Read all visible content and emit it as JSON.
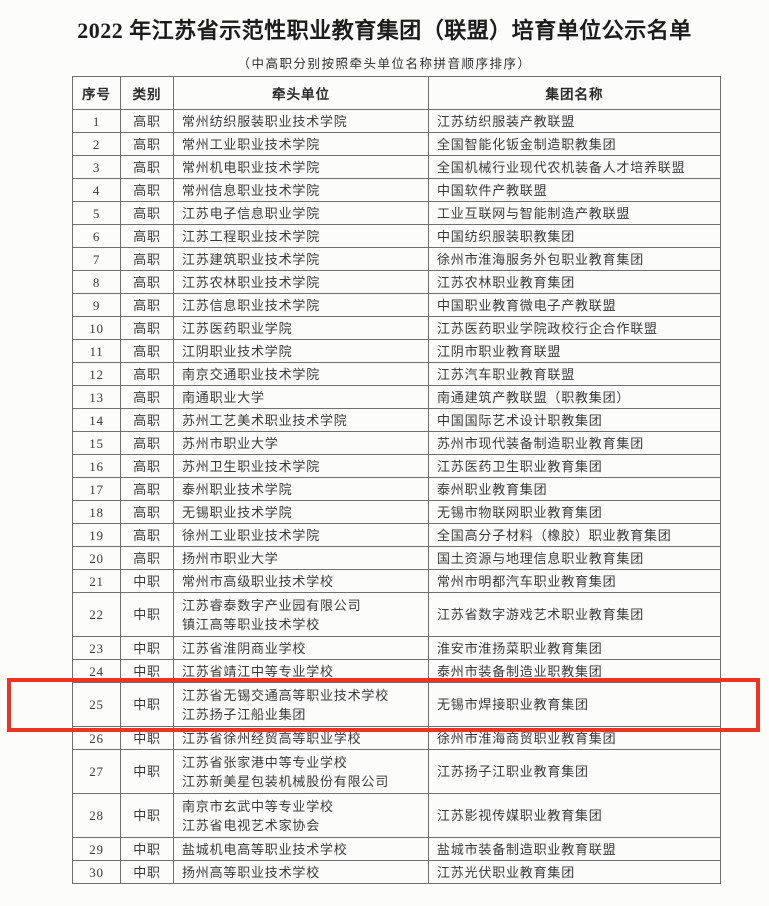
{
  "document": {
    "title": "2022 年江苏省示范性职业教育集团（联盟）培育单位公示名单",
    "subtitle": "（中高职分别按照牵头单位名称拼音顺序排序）"
  },
  "table": {
    "headers": [
      "序号",
      "类别",
      "牵头单位",
      "集团名称"
    ],
    "highlighted_row_no": "25",
    "highlight_color": "#ee3224",
    "rows": [
      {
        "no": "1",
        "category": "高职",
        "lead_unit": [
          "常州纺织服装职业技术学院"
        ],
        "group_name": "江苏纺织服装产教联盟"
      },
      {
        "no": "2",
        "category": "高职",
        "lead_unit": [
          "常州工业职业技术学院"
        ],
        "group_name": "全国智能化钣金制造职教集团"
      },
      {
        "no": "3",
        "category": "高职",
        "lead_unit": [
          "常州机电职业技术学院"
        ],
        "group_name": "全国机械行业现代农机装备人才培养联盟"
      },
      {
        "no": "4",
        "category": "高职",
        "lead_unit": [
          "常州信息职业技术学院"
        ],
        "group_name": "中国软件产教联盟"
      },
      {
        "no": "5",
        "category": "高职",
        "lead_unit": [
          "江苏电子信息职业学院"
        ],
        "group_name": "工业互联网与智能制造产教联盟"
      },
      {
        "no": "6",
        "category": "高职",
        "lead_unit": [
          "江苏工程职业技术学院"
        ],
        "group_name": "中国纺织服装职教集团"
      },
      {
        "no": "7",
        "category": "高职",
        "lead_unit": [
          "江苏建筑职业技术学院"
        ],
        "group_name": "徐州市淮海服务外包职业教育集团"
      },
      {
        "no": "8",
        "category": "高职",
        "lead_unit": [
          "江苏农林职业技术学院"
        ],
        "group_name": "江苏农林职业教育集团"
      },
      {
        "no": "9",
        "category": "高职",
        "lead_unit": [
          "江苏信息职业技术学院"
        ],
        "group_name": "中国职业教育微电子产教联盟"
      },
      {
        "no": "10",
        "category": "高职",
        "lead_unit": [
          "江苏医药职业学院"
        ],
        "group_name": "江苏医药职业学院政校行企合作联盟"
      },
      {
        "no": "11",
        "category": "高职",
        "lead_unit": [
          "江阴职业技术学院"
        ],
        "group_name": "江阴市职业教育联盟"
      },
      {
        "no": "12",
        "category": "高职",
        "lead_unit": [
          "南京交通职业技术学院"
        ],
        "group_name": "江苏汽车职业教育联盟"
      },
      {
        "no": "13",
        "category": "高职",
        "lead_unit": [
          "南通职业大学"
        ],
        "group_name": "南通建筑产教联盟（职教集团）"
      },
      {
        "no": "14",
        "category": "高职",
        "lead_unit": [
          "苏州工艺美术职业技术学院"
        ],
        "group_name": "中国国际艺术设计职教集团"
      },
      {
        "no": "15",
        "category": "高职",
        "lead_unit": [
          "苏州市职业大学"
        ],
        "group_name": "苏州市现代装备制造职业教育集团"
      },
      {
        "no": "16",
        "category": "高职",
        "lead_unit": [
          "苏州卫生职业技术学院"
        ],
        "group_name": "江苏医药卫生职业教育集团"
      },
      {
        "no": "17",
        "category": "高职",
        "lead_unit": [
          "泰州职业技术学院"
        ],
        "group_name": "泰州职业教育集团"
      },
      {
        "no": "18",
        "category": "高职",
        "lead_unit": [
          "无锡职业技术学院"
        ],
        "group_name": "无锡市物联网职业教育集团"
      },
      {
        "no": "19",
        "category": "高职",
        "lead_unit": [
          "徐州工业职业技术学院"
        ],
        "group_name": "全国高分子材料（橡胶）职业教育集团"
      },
      {
        "no": "20",
        "category": "高职",
        "lead_unit": [
          "扬州市职业大学"
        ],
        "group_name": "国土资源与地理信息职业教育集团"
      },
      {
        "no": "21",
        "category": "中职",
        "lead_unit": [
          "常州市高级职业技术学校"
        ],
        "group_name": "常州市明都汽车职业教育集团"
      },
      {
        "no": "22",
        "category": "中职",
        "lead_unit": [
          "江苏睿泰数字产业园有限公司",
          "镇江高等职业技术学校"
        ],
        "group_name": "江苏省数字游戏艺术职业教育集团"
      },
      {
        "no": "23",
        "category": "中职",
        "lead_unit": [
          "江苏省淮阴商业学校"
        ],
        "group_name": "淮安市淮扬菜职业教育集团"
      },
      {
        "no": "24",
        "category": "中职",
        "lead_unit": [
          "江苏省靖江中等专业学校"
        ],
        "group_name": "泰州市装备制造业职教集团"
      },
      {
        "no": "25",
        "category": "中职",
        "lead_unit": [
          "江苏省无锡交通高等职业技术学校",
          "江苏扬子江船业集团"
        ],
        "group_name": "无锡市焊接职业教育集团"
      },
      {
        "no": "26",
        "category": "中职",
        "lead_unit": [
          "江苏省徐州经贸高等职业学校"
        ],
        "group_name": "徐州市淮海商贸职业教育集团"
      },
      {
        "no": "27",
        "category": "中职",
        "lead_unit": [
          "江苏省张家港中等专业学校",
          "江苏新美星包装机械股份有限公司"
        ],
        "group_name": "江苏扬子江职业教育集团"
      },
      {
        "no": "28",
        "category": "中职",
        "lead_unit": [
          "南京市玄武中等专业学校",
          "江苏省电视艺术家协会"
        ],
        "group_name": "江苏影视传媒职业教育集团"
      },
      {
        "no": "29",
        "category": "中职",
        "lead_unit": [
          "盐城机电高等职业技术学校"
        ],
        "group_name": "盐城市装备制造职业教育联盟"
      },
      {
        "no": "30",
        "category": "中职",
        "lead_unit": [
          "扬州高等职业技术学校"
        ],
        "group_name": "江苏光伏职业教育集团"
      }
    ]
  }
}
